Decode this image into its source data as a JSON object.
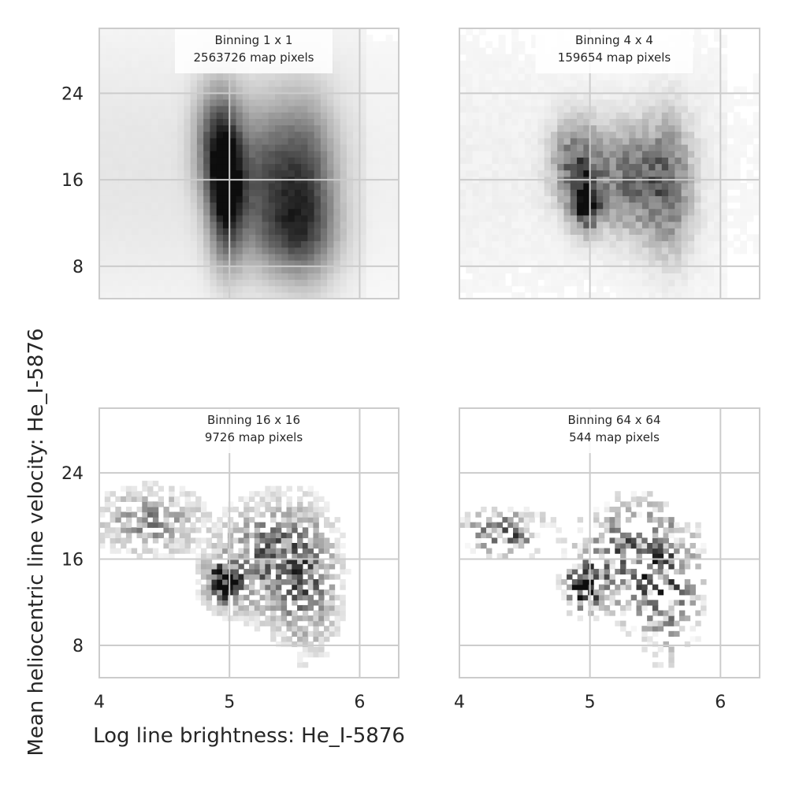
{
  "figure": {
    "xlabel": "Log line brightness: He_I-5876",
    "ylabel": "Mean heliocentric line velocity: He_I-5876"
  },
  "chart_data": [
    {
      "type": "heatmap",
      "title_lines": [
        "Binning 1 x 1",
        "2563726 map pixels"
      ],
      "binning": "1 x 1",
      "map_pixels": 2563726,
      "xlim": [
        4.0,
        6.3
      ],
      "ylim": [
        5.0,
        30.0
      ],
      "xticks": [
        4,
        5,
        6
      ],
      "yticks": [
        8,
        16,
        24
      ],
      "show_xticklabels": false,
      "show_yticklabels": true,
      "grid": true,
      "colormap": "greys",
      "density_clumps": [
        {
          "x": 4.98,
          "y": 15.0,
          "sx": 0.09,
          "sy": 4.0,
          "w": 1.0
        },
        {
          "x": 4.9,
          "y": 19.5,
          "sx": 0.11,
          "sy": 3.5,
          "w": 0.55
        },
        {
          "x": 5.3,
          "y": 16.0,
          "sx": 0.2,
          "sy": 4.5,
          "w": 0.55
        },
        {
          "x": 5.6,
          "y": 15.5,
          "sx": 0.15,
          "sy": 5.0,
          "w": 0.5
        },
        {
          "x": 5.5,
          "y": 11.0,
          "sx": 0.2,
          "sy": 2.5,
          "w": 0.35
        }
      ],
      "background_level": 0.06
    },
    {
      "type": "heatmap",
      "title_lines": [
        "Binning 4 x 4",
        "159654 map pixels"
      ],
      "binning": "4 x 4",
      "map_pixels": 159654,
      "xlim": [
        4.0,
        6.3
      ],
      "ylim": [
        5.0,
        30.0
      ],
      "xticks": [
        4,
        5,
        6
      ],
      "yticks": [
        8,
        16,
        24
      ],
      "show_xticklabels": false,
      "show_yticklabels": false,
      "grid": true,
      "colormap": "greys",
      "density_clumps": [
        {
          "x": 4.97,
          "y": 14.0,
          "sx": 0.07,
          "sy": 1.6,
          "w": 1.0
        },
        {
          "x": 4.9,
          "y": 17.5,
          "sx": 0.12,
          "sy": 2.5,
          "w": 0.55
        },
        {
          "x": 5.3,
          "y": 16.0,
          "sx": 0.18,
          "sy": 3.0,
          "w": 0.5
        },
        {
          "x": 5.6,
          "y": 15.5,
          "sx": 0.12,
          "sy": 4.0,
          "w": 0.45
        }
      ],
      "background_level": 0.03
    },
    {
      "type": "heatmap",
      "title_lines": [
        "Binning 16 x 16",
        "9726 map pixels"
      ],
      "binning": "16 x 16",
      "map_pixels": 9726,
      "xlim": [
        4.0,
        6.3
      ],
      "ylim": [
        5.0,
        30.0
      ],
      "xticks": [
        4,
        5,
        6
      ],
      "yticks": [
        8,
        16,
        24
      ],
      "show_xticklabels": true,
      "show_yticklabels": true,
      "grid": true,
      "colormap": "greys",
      "density_clumps": [
        {
          "x": 4.95,
          "y": 14.0,
          "sx": 0.09,
          "sy": 1.3,
          "w": 1.0
        },
        {
          "x": 4.4,
          "y": 19.5,
          "sx": 0.25,
          "sy": 1.8,
          "w": 0.35
        },
        {
          "x": 5.3,
          "y": 16.0,
          "sx": 0.2,
          "sy": 3.0,
          "w": 0.5
        },
        {
          "x": 5.6,
          "y": 14.0,
          "sx": 0.15,
          "sy": 4.0,
          "w": 0.4
        }
      ],
      "background_level": 0.0
    },
    {
      "type": "heatmap",
      "title_lines": [
        "Binning 64 x 64",
        "544 map pixels"
      ],
      "binning": "64 x 64",
      "map_pixels": 544,
      "xlim": [
        4.0,
        6.3
      ],
      "ylim": [
        5.0,
        30.0
      ],
      "xticks": [
        4,
        5,
        6
      ],
      "yticks": [
        8,
        16,
        24
      ],
      "show_xticklabels": true,
      "show_yticklabels": false,
      "grid": true,
      "colormap": "greys",
      "density_clumps": [
        {
          "x": 4.95,
          "y": 13.5,
          "sx": 0.08,
          "sy": 1.2,
          "w": 1.0
        },
        {
          "x": 4.35,
          "y": 18.5,
          "sx": 0.2,
          "sy": 1.2,
          "w": 0.45
        },
        {
          "x": 5.3,
          "y": 16.0,
          "sx": 0.22,
          "sy": 3.0,
          "w": 0.45
        },
        {
          "x": 5.6,
          "y": 13.5,
          "sx": 0.15,
          "sy": 4.0,
          "w": 0.35
        }
      ],
      "background_level": 0.0
    }
  ]
}
